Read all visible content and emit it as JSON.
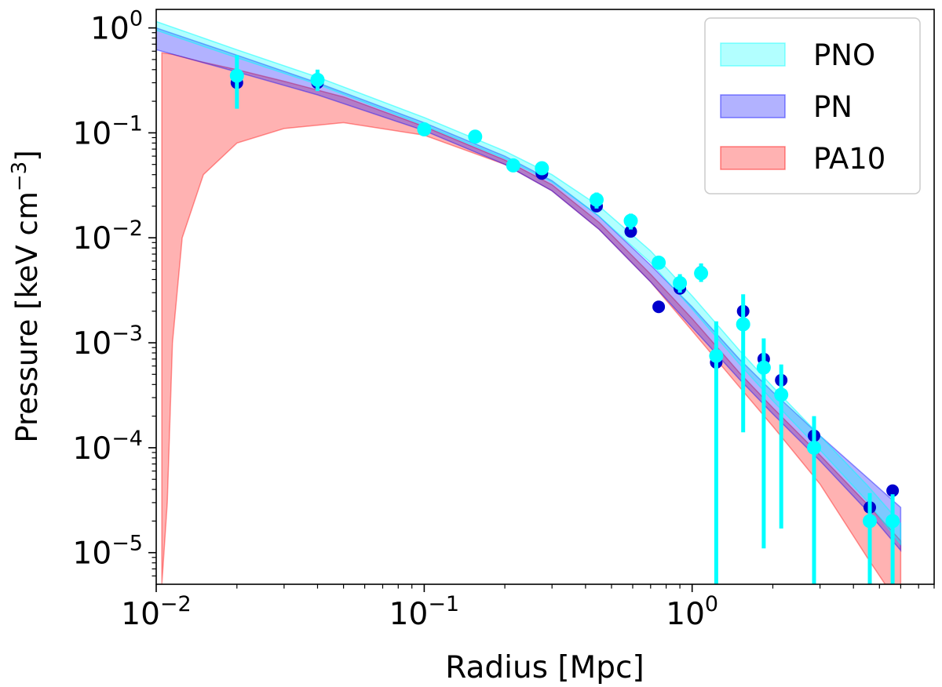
{
  "chart_data": {
    "type": "scatter",
    "title": "",
    "xlabel": "Radius [Mpc]",
    "ylabel_main": "Pressure [keV  cm",
    "ylabel_exp": "−3",
    "ylabel_close": "]",
    "xscale": "log",
    "yscale": "log",
    "xlim": [
      0.01,
      8.0
    ],
    "ylim": [
      5e-06,
      1.5
    ],
    "x_ticks": [
      {
        "value": 0.01,
        "base": "10",
        "exp": "−2"
      },
      {
        "value": 0.1,
        "base": "10",
        "exp": "−1"
      },
      {
        "value": 1.0,
        "base": "10",
        "exp": "0"
      }
    ],
    "y_ticks": [
      {
        "value": 1e-05,
        "base": "10",
        "exp": "−5"
      },
      {
        "value": 0.0001,
        "base": "10",
        "exp": "−4"
      },
      {
        "value": 0.001,
        "base": "10",
        "exp": "−3"
      },
      {
        "value": 0.01,
        "base": "10",
        "exp": "−2"
      },
      {
        "value": 0.1,
        "base": "10",
        "exp": "−1"
      },
      {
        "value": 1.0,
        "base": "10",
        "exp": "0"
      }
    ],
    "legend_position": "top-right",
    "legend": [
      {
        "label": "PNO",
        "color": "#00ffff"
      },
      {
        "label": "PN",
        "color": "#0000ff"
      },
      {
        "label": "PA10",
        "color": "#ff0000"
      }
    ],
    "bands": [
      {
        "name": "PA10",
        "color": "#ff0000",
        "fill_opacity": 0.3,
        "edge_opacity": 0.4,
        "x": [
          0.0105,
          0.011,
          0.0115,
          0.0125,
          0.015,
          0.02,
          0.03,
          0.05,
          0.1,
          0.2,
          0.3,
          0.45,
          0.7,
          1.0,
          1.5,
          2.0,
          3.0,
          4.5,
          6.0
        ],
        "upper": [
          0.58,
          0.57,
          0.56,
          0.53,
          0.47,
          0.4,
          0.31,
          0.22,
          0.115,
          0.055,
          0.032,
          0.014,
          0.0045,
          0.0017,
          0.00052,
          0.00024,
          8.5e-05,
          2.9e-05,
          1.3e-05
        ],
        "lower": [
          5e-06,
          3e-05,
          0.001,
          0.01,
          0.04,
          0.08,
          0.11,
          0.125,
          0.095,
          0.05,
          0.028,
          0.012,
          0.0038,
          0.0013,
          0.00038,
          0.00016,
          4.5e-05,
          9e-06,
          3e-06
        ]
      },
      {
        "name": "PN",
        "color": "#0000ff",
        "fill_opacity": 0.3,
        "edge_opacity": 0.4,
        "x": [
          0.01,
          0.02,
          0.04,
          0.1,
          0.2,
          0.3,
          0.45,
          0.7,
          1.0,
          1.5,
          2.0,
          3.0,
          4.5,
          6.0
        ],
        "upper": [
          1.0,
          0.55,
          0.3,
          0.125,
          0.06,
          0.035,
          0.016,
          0.0055,
          0.0022,
          0.0007,
          0.00034,
          0.00013,
          5.2e-05,
          2.7e-05
        ],
        "lower": [
          0.62,
          0.38,
          0.23,
          0.105,
          0.05,
          0.028,
          0.012,
          0.0038,
          0.0014,
          0.00045,
          0.00021,
          7.5e-05,
          2.5e-05,
          1.05e-05
        ]
      },
      {
        "name": "PNO",
        "color": "#00ffff",
        "fill_opacity": 0.3,
        "edge_opacity": 0.5,
        "x": [
          0.01,
          0.02,
          0.04,
          0.1,
          0.2,
          0.3,
          0.45,
          0.7,
          1.0,
          1.5,
          2.0,
          3.0,
          4.5,
          6.0
        ],
        "upper": [
          1.15,
          0.62,
          0.34,
          0.14,
          0.067,
          0.04,
          0.02,
          0.0075,
          0.0028,
          0.00085,
          0.00038,
          0.00013,
          4.4e-05,
          1.9e-05
        ],
        "lower": [
          0.95,
          0.52,
          0.29,
          0.118,
          0.057,
          0.034,
          0.016,
          0.0058,
          0.0021,
          0.00063,
          0.00028,
          9.5e-05,
          3.1e-05,
          1.2e-05
        ]
      }
    ],
    "points_pn": {
      "name": "PN",
      "color": "#0000cd",
      "x": [
        0.02,
        0.04,
        0.1,
        0.155,
        0.215,
        0.275,
        0.44,
        0.59,
        0.75,
        0.9,
        1.08,
        1.23,
        1.55,
        1.85,
        2.15,
        2.85,
        4.6,
        5.6
      ],
      "y": [
        0.3,
        0.3,
        0.108,
        0.092,
        0.049,
        0.041,
        0.02,
        0.0115,
        0.0022,
        0.0033,
        0.0047,
        0.00065,
        0.002,
        0.0007,
        0.00044,
        0.00013,
        2.7e-05,
        3.9e-05
      ]
    },
    "points_pno": {
      "name": "PNO",
      "color": "#00ffff",
      "x": [
        0.02,
        0.04,
        0.1,
        0.155,
        0.215,
        0.275,
        0.44,
        0.59,
        0.75,
        0.9,
        1.08,
        1.23,
        1.55,
        1.85,
        2.15,
        2.85,
        4.6,
        5.6
      ],
      "y": [
        0.35,
        0.32,
        0.108,
        0.092,
        0.049,
        0.046,
        0.023,
        0.0145,
        0.0058,
        0.0037,
        0.0046,
        0.00075,
        0.0015,
        0.00058,
        0.00032,
        0.0001,
        2e-05,
        2e-05
      ],
      "err_lo": [
        0.17,
        0.25,
        0.1,
        0.085,
        0.045,
        0.04,
        0.019,
        0.012,
        0.005,
        0.003,
        0.0038,
        5e-06,
        0.00014,
        1.1e-05,
        1.7e-05,
        5e-06,
        5e-06,
        5e-06
      ],
      "err_hi": [
        0.55,
        0.4,
        0.12,
        0.1,
        0.054,
        0.052,
        0.027,
        0.017,
        0.0067,
        0.0045,
        0.0057,
        0.0016,
        0.0029,
        0.0011,
        0.00062,
        0.0002,
        3.7e-05,
        3.6e-05
      ]
    }
  }
}
